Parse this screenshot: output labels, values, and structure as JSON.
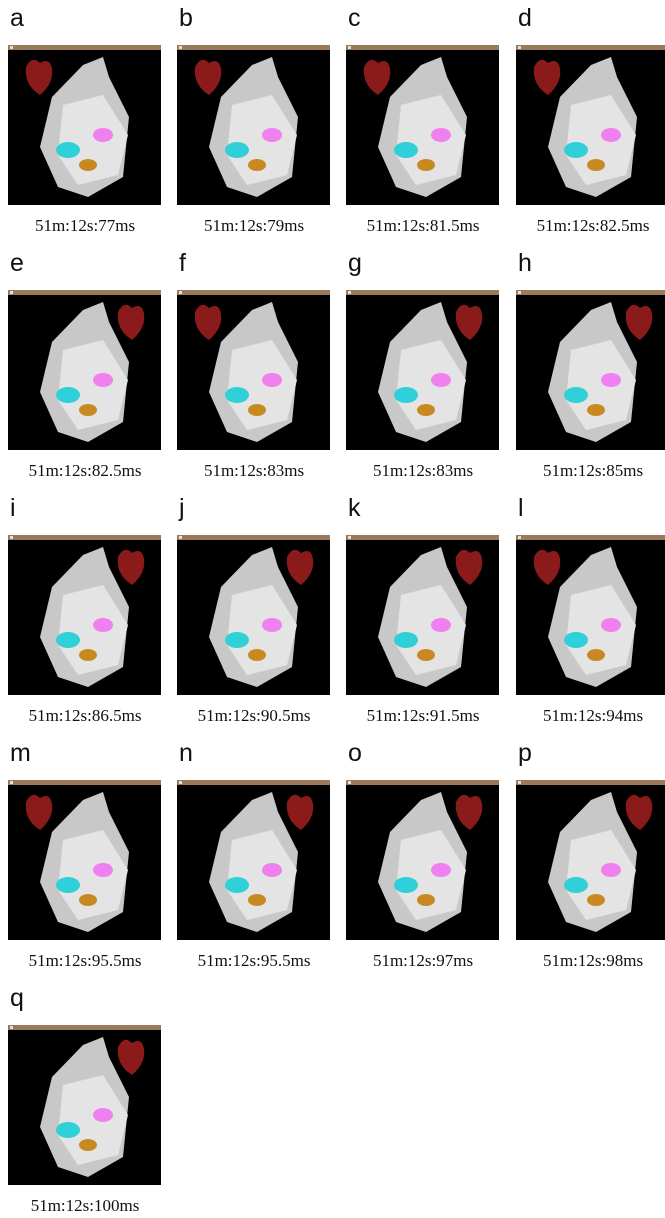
{
  "panels": [
    {
      "label": "a",
      "caption": "51m:12s:77ms"
    },
    {
      "label": "b",
      "caption": "51m:12s:79ms"
    },
    {
      "label": "c",
      "caption": "51m:12s:81.5ms"
    },
    {
      "label": "d",
      "caption": "51m:12s:82.5ms"
    },
    {
      "label": "e",
      "caption": "51m:12s:82.5ms"
    },
    {
      "label": "f",
      "caption": "51m:12s:83ms"
    },
    {
      "label": "g",
      "caption": "51m:12s:83ms"
    },
    {
      "label": "h",
      "caption": "51m:12s:85ms"
    },
    {
      "label": "i",
      "caption": "51m:12s:86.5ms"
    },
    {
      "label": "j",
      "caption": "51m:12s:90.5ms"
    },
    {
      "label": "k",
      "caption": "51m:12s:91.5ms"
    },
    {
      "label": "l",
      "caption": "51m:12s:94ms"
    },
    {
      "label": "m",
      "caption": "51m:12s:95.5ms"
    },
    {
      "label": "n",
      "caption": "51m:12s:95.5ms"
    },
    {
      "label": "o",
      "caption": "51m:12s:97ms"
    },
    {
      "label": "p",
      "caption": "51m:12s:98ms"
    },
    {
      "label": "q",
      "caption": "51m:12s:100ms"
    }
  ]
}
